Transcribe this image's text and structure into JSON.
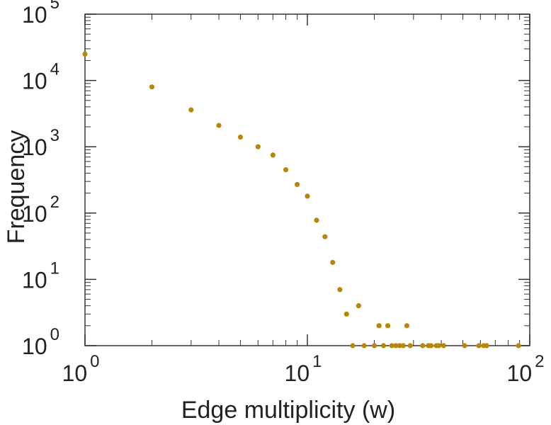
{
  "chart_data": {
    "type": "scatter",
    "title": "",
    "xlabel": "Edge multiplicity (w)",
    "ylabel": "Frequency",
    "xscale": "log",
    "yscale": "log",
    "xlim": [
      1,
      100
    ],
    "ylim": [
      1,
      100000
    ],
    "grid": false,
    "legend": "none",
    "x_ticks": [
      {
        "base": "10",
        "exp": "0",
        "value": 1
      },
      {
        "base": "10",
        "exp": "1",
        "value": 10
      },
      {
        "base": "10",
        "exp": "2",
        "value": 100
      }
    ],
    "y_ticks": [
      {
        "base": "10",
        "exp": "0",
        "value": 1
      },
      {
        "base": "10",
        "exp": "1",
        "value": 10
      },
      {
        "base": "10",
        "exp": "2",
        "value": 100
      },
      {
        "base": "10",
        "exp": "3",
        "value": 1000
      },
      {
        "base": "10",
        "exp": "4",
        "value": 10000
      },
      {
        "base": "10",
        "exp": "5",
        "value": 100000
      }
    ],
    "marker_color": "#b8860b",
    "points": [
      [
        1,
        25000
      ],
      [
        2,
        8000
      ],
      [
        3,
        3600
      ],
      [
        4,
        2100
      ],
      [
        5,
        1400
      ],
      [
        6,
        1000
      ],
      [
        7,
        750
      ],
      [
        8,
        450
      ],
      [
        9,
        270
      ],
      [
        10,
        180
      ],
      [
        11,
        78
      ],
      [
        12,
        44
      ],
      [
        13,
        18
      ],
      [
        14,
        7
      ],
      [
        15,
        3
      ],
      [
        16,
        1
      ],
      [
        17,
        4
      ],
      [
        18,
        1
      ],
      [
        20,
        1
      ],
      [
        21,
        2
      ],
      [
        22,
        1
      ],
      [
        23,
        2
      ],
      [
        24,
        1
      ],
      [
        25,
        1
      ],
      [
        26,
        1
      ],
      [
        27,
        1
      ],
      [
        28,
        2
      ],
      [
        29,
        1
      ],
      [
        33,
        1
      ],
      [
        35,
        1
      ],
      [
        36,
        1
      ],
      [
        38,
        1
      ],
      [
        39,
        1
      ],
      [
        41,
        1
      ],
      [
        51,
        1
      ],
      [
        59,
        1
      ],
      [
        62,
        1
      ],
      [
        64,
        1
      ],
      [
        89,
        1
      ]
    ]
  }
}
